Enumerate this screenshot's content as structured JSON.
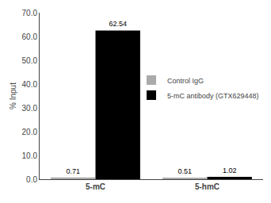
{
  "chart_data": {
    "type": "bar",
    "categories": [
      "5-mC",
      "5-hmC"
    ],
    "series": [
      {
        "name": "Control IgG",
        "color": "#aaaaaa",
        "values": [
          0.71,
          0.51
        ]
      },
      {
        "name": "5-mC antibody (GTX629448)",
        "color": "#000000",
        "values": [
          62.54,
          1.02
        ]
      }
    ],
    "ylabel": "% Input",
    "ylim": [
      0,
      70
    ],
    "yticks": [
      {
        "value": 0,
        "label": "0.0"
      },
      {
        "value": 10,
        "label": "10.0"
      },
      {
        "value": 20,
        "label": "20.0"
      },
      {
        "value": 30,
        "label": "30.0"
      },
      {
        "value": 40,
        "label": "40.0"
      },
      {
        "value": 50,
        "label": "50.0"
      },
      {
        "value": 60,
        "label": "60.0"
      },
      {
        "value": 70,
        "label": "70.0"
      }
    ],
    "data_labels": true,
    "legend": "right",
    "grid": false
  }
}
